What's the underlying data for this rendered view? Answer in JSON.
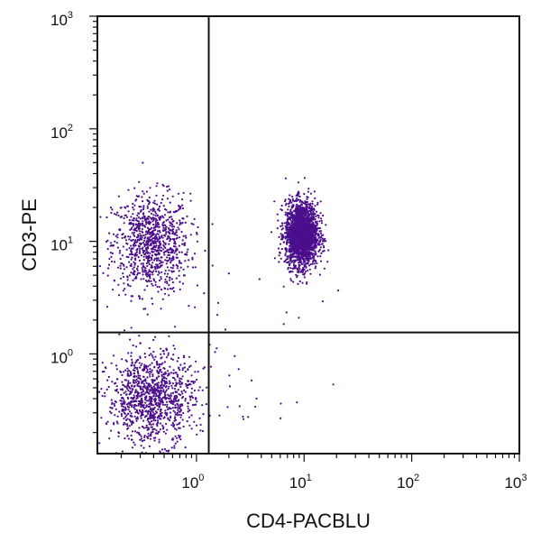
{
  "chart_data": {
    "type": "scatter",
    "title": "",
    "xlabel": "CD4-PACBLU",
    "ylabel": "CD3-PE",
    "x_scale": "log",
    "y_scale": "log",
    "xlim": [
      0.12,
      1000
    ],
    "ylim": [
      0.13,
      1000
    ],
    "x_ticks": [
      {
        "base": "10",
        "exp": "0"
      },
      {
        "base": "10",
        "exp": "1"
      },
      {
        "base": "10",
        "exp": "2"
      },
      {
        "base": "10",
        "exp": "3"
      }
    ],
    "y_ticks": [
      {
        "base": "10",
        "exp": "0"
      },
      {
        "base": "10",
        "exp": "1"
      },
      {
        "base": "10",
        "exp": "2"
      },
      {
        "base": "10",
        "exp": "3"
      }
    ],
    "grid": false,
    "point_color": "#4b0f8c",
    "quadrant_gates": {
      "x": 1.3,
      "y": 1.55
    },
    "populations": [
      {
        "description_visible": false,
        "x_center": 0.38,
        "y_center": 9.5,
        "count": 950
      },
      {
        "description_visible": false,
        "x_center": 9.5,
        "y_center": 11.5,
        "count": 2200
      },
      {
        "description_visible": false,
        "x_center": 0.38,
        "y_center": 0.4,
        "count": 1100
      }
    ]
  }
}
